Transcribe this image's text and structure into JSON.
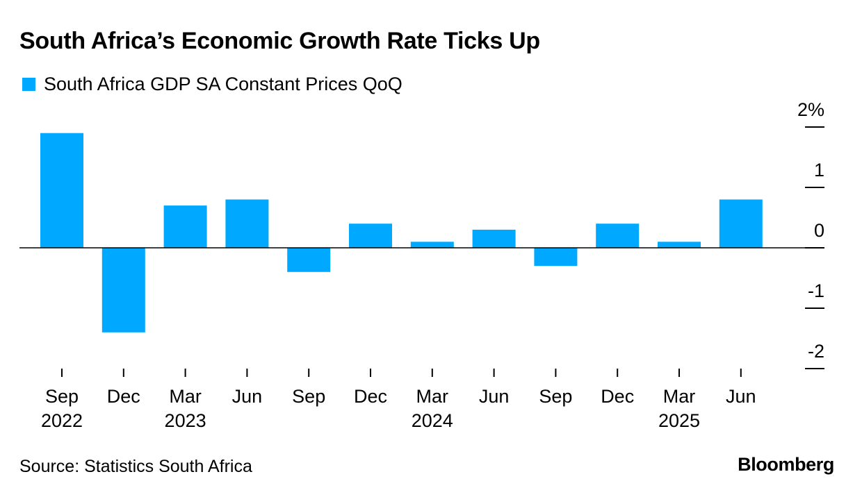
{
  "colors": {
    "bar": "#00A8FF",
    "axis": "#000000"
  },
  "footer": {
    "source": "Source: Statistics South Africa",
    "brand": "Bloomberg"
  },
  "chart_data": {
    "type": "bar",
    "title": "South Africa’s Economic Growth Rate Ticks Up",
    "legend_position": "top-left",
    "series": [
      {
        "name": "South Africa GDP SA Constant Prices QoQ",
        "values": [
          1.9,
          -1.4,
          0.7,
          0.8,
          -0.4,
          0.4,
          0.1,
          0.3,
          -0.3,
          0.4,
          0.1,
          0.8
        ]
      }
    ],
    "categories": [
      "Sep 2022",
      "Dec 2022",
      "Mar 2023",
      "Jun 2023",
      "Sep 2023",
      "Dec 2023",
      "Mar 2024",
      "Jun 2024",
      "Sep 2024",
      "Dec 2024",
      "Mar 2025",
      "Jun 2025"
    ],
    "x_tick_labels": [
      {
        "month": "Sep",
        "year": "2022"
      },
      {
        "month": "Dec",
        "year": ""
      },
      {
        "month": "Mar",
        "year": "2023"
      },
      {
        "month": "Jun",
        "year": ""
      },
      {
        "month": "Sep",
        "year": ""
      },
      {
        "month": "Dec",
        "year": ""
      },
      {
        "month": "Mar",
        "year": "2024"
      },
      {
        "month": "Jun",
        "year": ""
      },
      {
        "month": "Sep",
        "year": ""
      },
      {
        "month": "Dec",
        "year": ""
      },
      {
        "month": "Mar",
        "year": "2025"
      },
      {
        "month": "Jun",
        "year": ""
      }
    ],
    "y_ticks": [
      {
        "value": 2,
        "label": "2%"
      },
      {
        "value": 1,
        "label": "1"
      },
      {
        "value": 0,
        "label": "0"
      },
      {
        "value": -1,
        "label": "-1"
      },
      {
        "value": -2,
        "label": "-2"
      }
    ],
    "ylim": [
      -2,
      2
    ],
    "y_axis_side": "right",
    "grid": false
  }
}
